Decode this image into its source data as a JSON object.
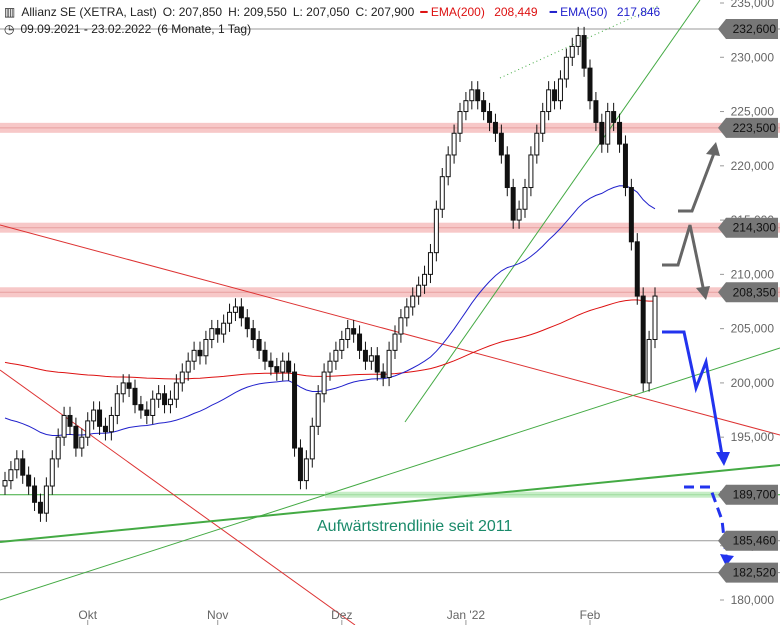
{
  "header": {
    "instrument": "Allianz SE (XETRA, Last)",
    "open": "O: 207,850",
    "high": "H: 209,550",
    "low": "L: 207,050",
    "close": "C: 207,900",
    "ema200_label": "EMA(200)",
    "ema200_value": "208,449",
    "ema50_label": "EMA(50)",
    "ema50_value": "217,846",
    "range": "09.09.2021 - 23.02.2022",
    "period": "(6 Monate, 1 Tag)",
    "colors": {
      "ema200": "#dd1111",
      "ema50": "#2222cc"
    }
  },
  "chart_data": {
    "type": "candlestick",
    "y_axis": {
      "ylim": [
        180,
        235
      ],
      "ticks": [
        "180,000",
        "185,000",
        "190,000",
        "195,000",
        "200,000",
        "205,000",
        "210,000",
        "215,000",
        "220,000",
        "225,000",
        "230,000",
        "235,000"
      ]
    },
    "x_axis": {
      "ticks": [
        "Okt",
        "Nov",
        "Dez",
        "Jan '22",
        "Feb"
      ]
    },
    "levels": [
      {
        "value": 232.6,
        "label": "232,600",
        "zone": false
      },
      {
        "value": 223.5,
        "label": "223,500",
        "zone": true
      },
      {
        "value": 214.3,
        "label": "214,300",
        "zone": true
      },
      {
        "value": 208.35,
        "label": "208,350",
        "zone": true
      },
      {
        "value": 189.7,
        "label": "189,700",
        "zone": "green"
      },
      {
        "value": 185.46,
        "label": "185,460",
        "zone": false
      },
      {
        "value": 182.52,
        "label": "182,520",
        "zone": false
      }
    ],
    "annotation": "Aufwärtstrendlinie seit 2011",
    "closes": [
      191,
      192,
      193,
      191.5,
      190.5,
      189,
      188,
      190.5,
      193,
      195,
      197,
      196,
      194,
      195,
      196.5,
      197.5,
      196,
      195.5,
      197,
      199,
      200,
      199.5,
      198,
      197.5,
      197,
      198.5,
      199,
      198,
      198.5,
      200,
      201,
      202,
      203,
      202.5,
      204,
      205,
      204.5,
      205.5,
      206.5,
      207,
      206,
      205,
      204,
      203,
      202,
      201.5,
      201,
      202,
      201,
      194,
      191,
      193,
      196,
      199,
      201,
      202,
      203,
      204,
      205,
      204.5,
      203,
      202,
      202.5,
      201,
      200.5,
      203,
      204.5,
      206,
      207,
      208,
      209,
      210,
      212,
      216,
      219,
      221,
      223,
      225,
      226,
      227,
      226,
      225,
      224,
      223,
      221,
      218,
      215,
      216,
      218,
      221,
      223,
      225,
      227,
      226,
      228,
      230,
      231,
      232,
      229,
      226,
      224,
      222,
      225,
      224,
      222,
      218,
      213,
      208,
      200,
      204,
      208
    ]
  }
}
